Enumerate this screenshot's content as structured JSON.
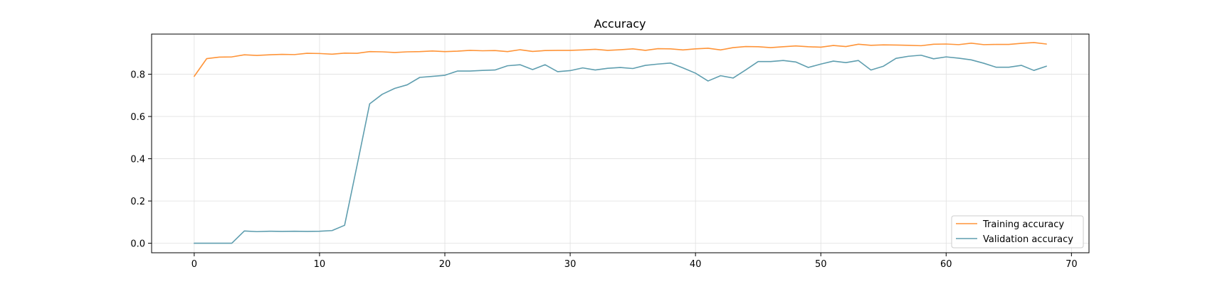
{
  "chart_data": {
    "type": "line",
    "title": "Accuracy",
    "xlabel": "",
    "ylabel": "",
    "xlim": [
      -3.4,
      71.4
    ],
    "ylim": [
      -0.045,
      0.99
    ],
    "xticks": [
      0,
      10,
      20,
      30,
      40,
      50,
      60,
      70
    ],
    "yticks": [
      0.0,
      0.2,
      0.4,
      0.6,
      0.8
    ],
    "xtick_labels": [
      "0",
      "10",
      "20",
      "30",
      "40",
      "50",
      "60",
      "70"
    ],
    "ytick_labels": [
      "0.0",
      "0.2",
      "0.4",
      "0.6",
      "0.8"
    ],
    "grid": true,
    "legend_position": "lower-right",
    "series": [
      {
        "name": "Training accuracy",
        "color": "#ff9438",
        "values": [
          0.79,
          0.874,
          0.881,
          0.882,
          0.892,
          0.889,
          0.892,
          0.894,
          0.893,
          0.899,
          0.898,
          0.895,
          0.9,
          0.899,
          0.907,
          0.906,
          0.903,
          0.906,
          0.907,
          0.91,
          0.907,
          0.909,
          0.913,
          0.911,
          0.912,
          0.907,
          0.916,
          0.908,
          0.912,
          0.913,
          0.913,
          0.915,
          0.918,
          0.913,
          0.916,
          0.92,
          0.913,
          0.921,
          0.92,
          0.915,
          0.92,
          0.923,
          0.915,
          0.926,
          0.931,
          0.93,
          0.926,
          0.93,
          0.934,
          0.93,
          0.928,
          0.936,
          0.931,
          0.942,
          0.937,
          0.939,
          0.938,
          0.937,
          0.935,
          0.942,
          0.943,
          0.94,
          0.947,
          0.94,
          0.941,
          0.941,
          0.946,
          0.95,
          0.943
        ]
      },
      {
        "name": "Validation accuracy",
        "color": "#5f9eaf",
        "values": [
          0.0,
          0.0,
          0.0,
          0.0,
          0.058,
          0.055,
          0.057,
          0.056,
          0.057,
          0.056,
          0.057,
          0.06,
          0.085,
          0.37,
          0.66,
          0.705,
          0.733,
          0.75,
          0.785,
          0.79,
          0.795,
          0.815,
          0.815,
          0.818,
          0.82,
          0.84,
          0.845,
          0.822,
          0.845,
          0.812,
          0.817,
          0.83,
          0.82,
          0.828,
          0.832,
          0.827,
          0.842,
          0.848,
          0.853,
          0.83,
          0.805,
          0.768,
          0.793,
          0.782,
          0.82,
          0.86,
          0.86,
          0.865,
          0.858,
          0.832,
          0.848,
          0.862,
          0.855,
          0.865,
          0.82,
          0.838,
          0.875,
          0.885,
          0.89,
          0.873,
          0.882,
          0.876,
          0.868,
          0.852,
          0.833,
          0.833,
          0.842,
          0.818,
          0.838
        ]
      }
    ]
  }
}
